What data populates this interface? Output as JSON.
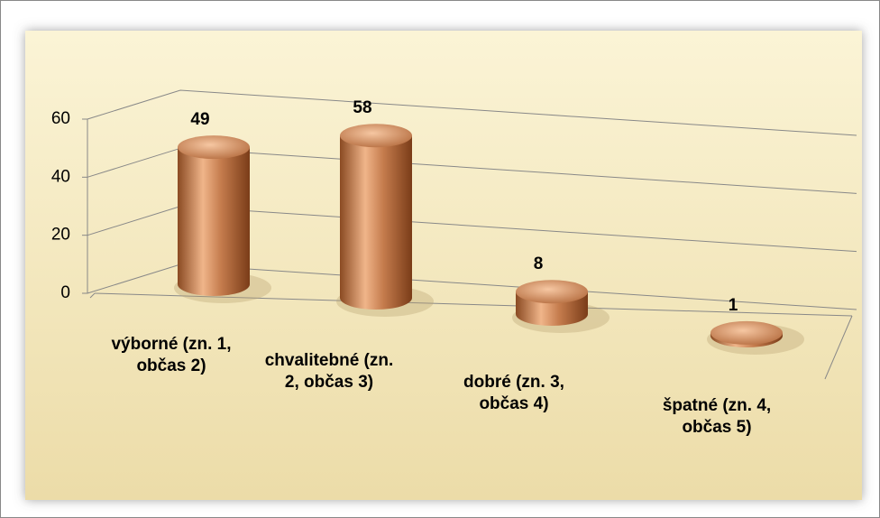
{
  "chart_data": {
    "type": "bar",
    "categories": [
      "výborné (zn. 1, občas 2)",
      "chvalitebné (zn. 2,  občas 3)",
      "dobré (zn. 3, občas 4)",
      "špatné (zn. 4, občas 5)"
    ],
    "values": [
      49,
      58,
      8,
      1
    ],
    "ylim": [
      0,
      60
    ],
    "yticks": [
      0,
      20,
      40,
      60
    ],
    "grid": true,
    "color": "#c57c4d"
  }
}
